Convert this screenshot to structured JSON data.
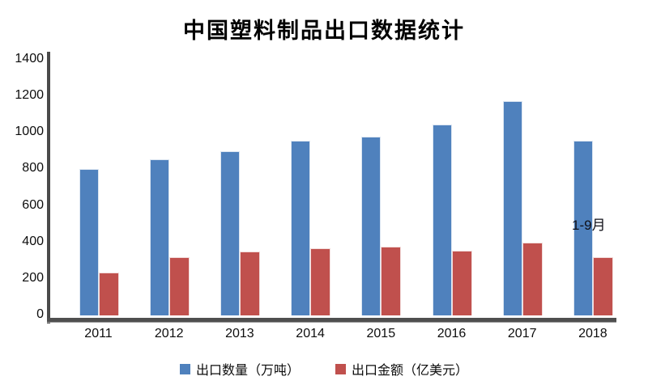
{
  "chart_data": {
    "type": "bar",
    "title": "中国塑料制品出口数据统计",
    "categories": [
      "2011",
      "2012",
      "2013",
      "2014",
      "2015",
      "2016",
      "2017",
      "2018"
    ],
    "series": [
      {
        "name": "出口数量（万吨）",
        "color": "#4F81BD",
        "values": [
          802,
          855,
          900,
          955,
          978,
          1045,
          1172,
          956
        ]
      },
      {
        "name": "出口金额（亿美元）",
        "color": "#C0504D",
        "values": [
          236,
          317,
          350,
          368,
          376,
          356,
          398,
          318
        ]
      }
    ],
    "xlabel": "",
    "ylabel": "",
    "ylim": [
      0,
      1400
    ],
    "yticks": [
      0,
      200,
      400,
      600,
      800,
      1000,
      1200,
      1400
    ],
    "grid": false,
    "legend_position": "bottom",
    "annotation": {
      "text": "1-9月",
      "target_category": "2018"
    },
    "colors": {
      "axis": "#4a4a4a",
      "text": "#0d0d0d",
      "background": "#ffffff"
    }
  }
}
